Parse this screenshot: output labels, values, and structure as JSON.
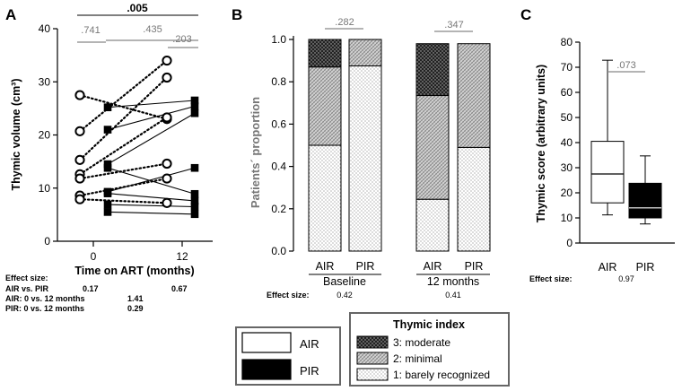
{
  "panel_labels": {
    "a": "A",
    "b": "B",
    "c": "C"
  },
  "colors": {
    "pir_fill": "#000000",
    "air_fill": "#ffffff",
    "grey_text": "#777777",
    "bracket": "#888888"
  },
  "chart_data": [
    {
      "id": "A",
      "type": "scatter",
      "title": "",
      "xlabel": "Time on ART (months)",
      "ylabel": "Thymic volume (cm³)",
      "xticks": [
        "0",
        "12"
      ],
      "ylim": [
        0,
        40
      ],
      "yticks": [
        0,
        10,
        20,
        30,
        40
      ],
      "brackets": [
        {
          "label": ".005",
          "bold": true
        },
        {
          "label": ".741",
          "bold": false
        },
        {
          "label": ".435",
          "bold": false
        },
        {
          "label": ".203",
          "bold": false
        }
      ],
      "series": [
        {
          "name": "AIR",
          "marker": "open-circle",
          "style": "dotted",
          "pairs": [
            [
              27.5,
              23.0
            ],
            [
              20.7,
              34.0
            ],
            [
              15.3,
              30.8
            ],
            [
              12.6,
              23.3
            ],
            [
              11.8,
              14.6
            ],
            [
              8.6,
              11.8
            ],
            [
              7.9,
              7.2
            ]
          ]
        },
        {
          "name": "PIR",
          "marker": "filled-square",
          "style": "solid",
          "pairs": [
            [
              25.2,
              26.5
            ],
            [
              21.0,
              25.4
            ],
            [
              14.5,
              24.1
            ],
            [
              13.8,
              8.9
            ],
            [
              9.3,
              13.8
            ],
            [
              9.0,
              7.6
            ],
            [
              6.9,
              6.5
            ],
            [
              5.5,
              5.1
            ]
          ]
        }
      ],
      "effect": {
        "title": "Effect size:",
        "rows": [
          {
            "label": "AIR vs. PIR",
            "v1": "0.17",
            "v2": "0.67"
          },
          {
            "label": "AIR: 0 vs. 12 months",
            "v1": "1.41",
            "v2": ""
          },
          {
            "label": "PIR: 0 vs. 12 months",
            "v1": "0.29",
            "v2": ""
          }
        ]
      }
    },
    {
      "id": "B",
      "type": "bar",
      "stacked": true,
      "ylabel": "Patients´ proportion",
      "ylim": [
        0,
        1.0
      ],
      "yticks": [
        "0.0",
        "0.2",
        "0.4",
        "0.6",
        "0.8",
        "1.0"
      ],
      "categories": [
        "AIR",
        "PIR",
        "AIR",
        "PIR"
      ],
      "groups": [
        {
          "label": "Baseline",
          "pvalue": ".282",
          "effect": "0.42"
        },
        {
          "label": "12 months",
          "pvalue": ".347",
          "effect": "0.41"
        }
      ],
      "effect_title": "Effect size:",
      "series": [
        {
          "name": "1: barely recognized",
          "values": [
            0.5,
            0.875,
            0.245,
            0.49
          ]
        },
        {
          "name": "2: minimal",
          "values": [
            0.37,
            0.125,
            0.49,
            0.49
          ]
        },
        {
          "name": "3: moderate",
          "values": [
            0.13,
            0.0,
            0.245,
            0.0
          ]
        }
      ]
    },
    {
      "id": "C",
      "type": "box",
      "ylabel": "Thymic score (arbitrary units)",
      "ylim": [
        0,
        80
      ],
      "yticks": [
        0,
        10,
        20,
        30,
        40,
        50,
        60,
        70,
        80
      ],
      "categories": [
        "AIR",
        "PIR"
      ],
      "pvalue": ".073",
      "effect": {
        "title": "Effect size:",
        "value": "0.97"
      },
      "boxes": [
        {
          "name": "AIR",
          "min": 11.2,
          "q1": 16.0,
          "median": 27.5,
          "q3": 40.5,
          "max": 72.8
        },
        {
          "name": "PIR",
          "min": 7.6,
          "q1": 10.0,
          "median": 14.0,
          "q3": 23.8,
          "max": 34.7
        }
      ]
    }
  ],
  "legend_groups": {
    "items": [
      "AIR",
      "PIR"
    ]
  },
  "legend_index": {
    "title": "Thymic index",
    "items": [
      "3: moderate",
      "2: minimal",
      "1: barely recognized"
    ]
  }
}
